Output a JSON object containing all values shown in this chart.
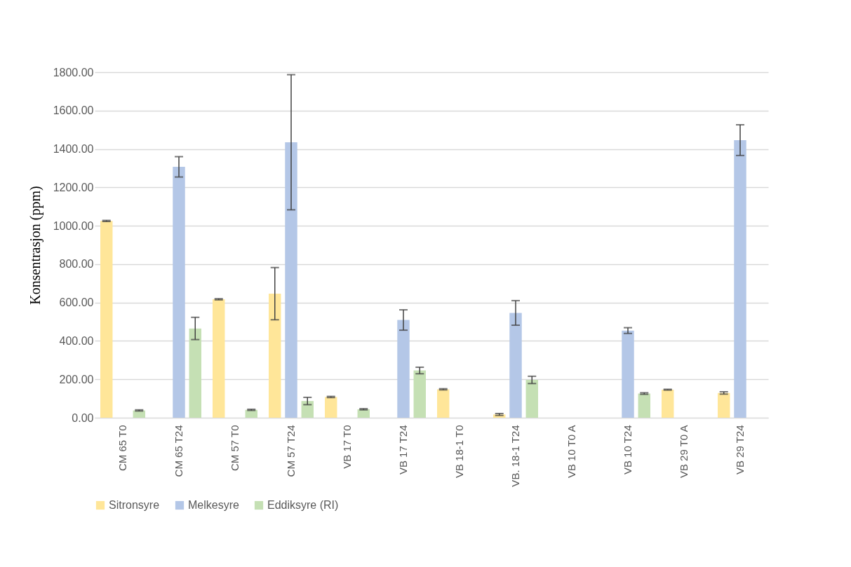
{
  "chart_data": {
    "type": "bar",
    "ylabel": "Konsentrasjon (ppm)",
    "categories": [
      "CM 65 T0",
      "CM 65 T24",
      "CM 57 T0",
      "CM 57 T24",
      "VB 17 T0",
      "VB 17 T24",
      "VB 18-1 T0",
      "VB. 18-1 T24",
      "VB 10 T0 A",
      "VB 10 T24",
      "VB 29 T0 A",
      "VB 29 T24"
    ],
    "series": [
      {
        "name": "Sitronsyre",
        "color": "#ffe699",
        "values": [
          1025,
          0,
          617,
          646,
          108,
          0,
          148,
          17,
          0,
          0,
          146,
          129
        ],
        "errors": [
          3,
          null,
          3,
          136,
          3,
          null,
          3,
          5,
          null,
          null,
          2,
          6
        ]
      },
      {
        "name": "Melkesyre",
        "color": "#b4c7e7",
        "values": [
          0,
          1307,
          0,
          1435,
          0,
          509,
          0,
          546,
          0,
          454,
          0,
          1446
        ],
        "errors": [
          null,
          53,
          null,
          352,
          null,
          53,
          null,
          64,
          null,
          15,
          null,
          80
        ]
      },
      {
        "name": "Eddiksyre (RI)",
        "color": "#c5e0b4",
        "values": [
          38,
          465,
          41,
          87,
          44,
          246,
          0,
          197,
          0,
          126,
          0,
          0
        ],
        "errors": [
          3,
          58,
          3,
          19,
          3,
          17,
          null,
          19,
          null,
          4,
          null,
          null
        ]
      }
    ],
    "ylim": [
      0,
      1800
    ],
    "yticks": [
      {
        "value": 0,
        "label": "0.00"
      },
      {
        "value": 200,
        "label": "200.00"
      },
      {
        "value": 400,
        "label": "400.00"
      },
      {
        "value": 600,
        "label": "600.00"
      },
      {
        "value": 800,
        "label": "800.00"
      },
      {
        "value": 1000,
        "label": "1000.00"
      },
      {
        "value": 1200,
        "label": "1200.00"
      },
      {
        "value": 1400,
        "label": "1400.00"
      },
      {
        "value": 1600,
        "label": "1600.00"
      },
      {
        "value": 1800,
        "label": "1800.00"
      }
    ],
    "grid": "y",
    "legend": "bottom"
  }
}
